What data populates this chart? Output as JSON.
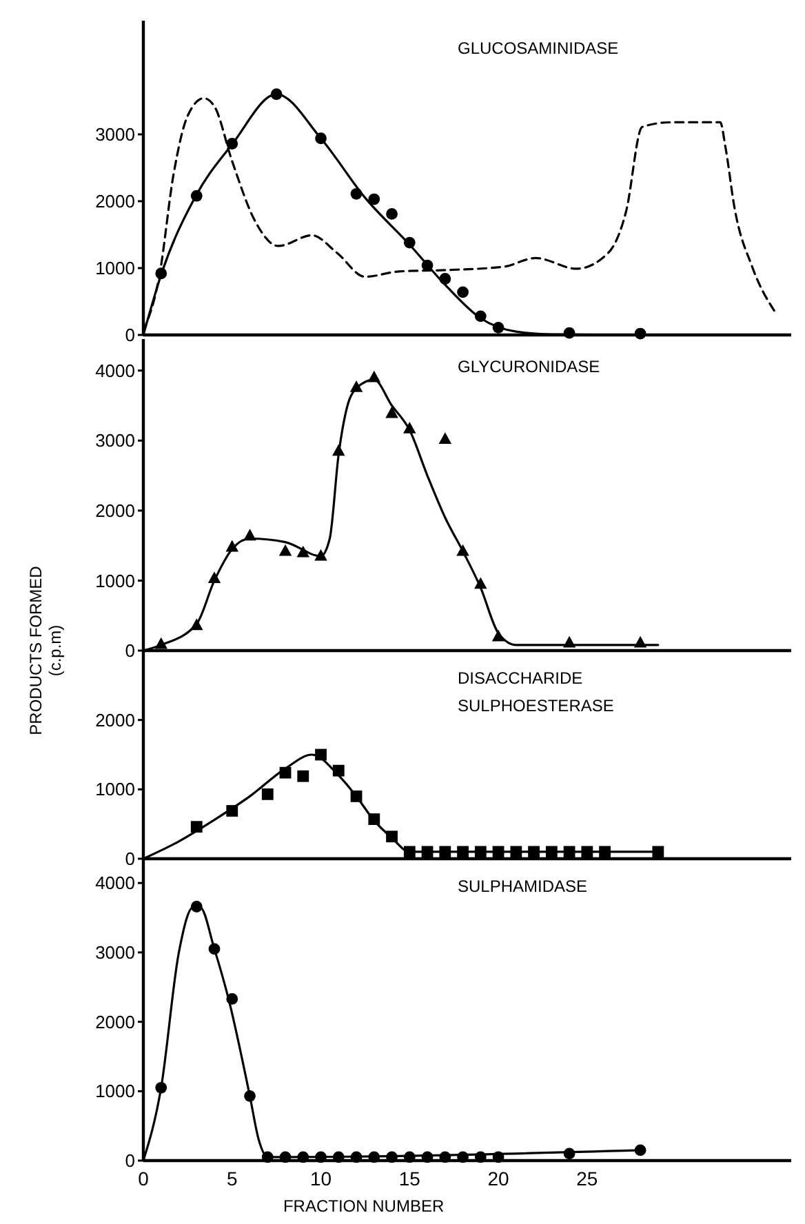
{
  "chart_data": [
    {
      "type": "line",
      "title": "GLUCOSAMINIDASE",
      "xlim": [
        0,
        36.5
      ],
      "ylim": [
        0,
        4700
      ],
      "yticks": [
        0,
        1000,
        2000,
        3000
      ],
      "tick_labels": "y",
      "grid": false,
      "series": [
        {
          "type": "scatter",
          "marker": "circle",
          "color": "#000000",
          "x": [
            1,
            3,
            5,
            7.5,
            10,
            12,
            13,
            14,
            15,
            16,
            17,
            18,
            19,
            20,
            24,
            28
          ],
          "values": [
            920,
            2080,
            2860,
            3600,
            2940,
            2110,
            2030,
            1810,
            1380,
            1040,
            840,
            640,
            280,
            110,
            30,
            20
          ]
        },
        {
          "marker": "none",
          "line_style": "solid",
          "color": "#000000",
          "x": [
            0,
            1,
            3,
            5,
            7.5,
            10,
            12.5,
            15,
            17,
            19,
            21,
            23,
            28
          ],
          "values": [
            0,
            900,
            2100,
            2850,
            3600,
            2940,
            2050,
            1350,
            750,
            250,
            50,
            10,
            0
          ]
        },
        {
          "marker": "none",
          "line_style": "dashed",
          "color": "#000000",
          "x": [
            0,
            0.9,
            1.7,
            2.5,
            3.4,
            4,
            5,
            6.3,
            7.6,
            9.5,
            10.9,
            12.5,
            14.4,
            17,
            20.3,
            22.1,
            24.4,
            26.2,
            27.2,
            28.1,
            29.7,
            32.5,
            32.8,
            33.3,
            34.3,
            35.7
          ],
          "values": [
            60,
            880,
            2400,
            3280,
            3540,
            3420,
            2600,
            1700,
            1330,
            1490,
            1230,
            870,
            950,
            970,
            1020,
            1150,
            990,
            1230,
            1850,
            3110,
            3180,
            3180,
            2800,
            1910,
            1020,
            300
          ]
        }
      ]
    },
    {
      "type": "line",
      "title": "GLYCURONIDASE",
      "ylabel": "PRODUCTS  FORMED\n(c.p.m)",
      "xlim": [
        0,
        36.5
      ],
      "ylim": [
        0,
        4450
      ],
      "yticks": [
        0,
        1000,
        2000,
        3000,
        4000
      ],
      "tick_labels": "y",
      "grid": false,
      "series": [
        {
          "type": "scatter",
          "marker": "triangle",
          "color": "#000000",
          "x": [
            1,
            3,
            4,
            5,
            6,
            8,
            9,
            10,
            11,
            12,
            13,
            14,
            15,
            17,
            18,
            19,
            20,
            24,
            28
          ],
          "values": [
            90,
            360,
            1030,
            1480,
            1640,
            1420,
            1400,
            1350,
            2850,
            3760,
            3900,
            3390,
            3170,
            3020,
            1420,
            950,
            200,
            110,
            110
          ]
        },
        {
          "marker": "none",
          "line_style": "solid",
          "color": "#000000",
          "x": [
            0,
            1,
            3,
            4,
            5,
            6,
            8,
            10,
            10.5,
            11,
            11.5,
            12,
            13,
            14,
            15,
            16,
            17,
            18,
            19,
            20,
            21,
            29
          ],
          "values": [
            0,
            80,
            380,
            1000,
            1450,
            1600,
            1550,
            1350,
            1600,
            2800,
            3500,
            3750,
            3870,
            3500,
            3150,
            2500,
            1900,
            1420,
            900,
            250,
            80,
            80
          ]
        }
      ]
    },
    {
      "type": "line",
      "title": "DISACCHARIDE\nSULPHOESTERASE",
      "xlim": [
        0,
        36.5
      ],
      "ylim": [
        0,
        3000
      ],
      "yticks": [
        0,
        1000,
        2000
      ],
      "tick_labels": "y",
      "grid": false,
      "series": [
        {
          "type": "scatter",
          "marker": "square",
          "color": "#000000",
          "x": [
            3,
            5,
            7,
            8,
            9,
            10,
            11,
            12,
            13,
            14,
            15,
            16,
            17,
            18,
            19,
            20,
            21,
            22,
            23,
            24,
            25,
            26,
            29
          ],
          "values": [
            460,
            690,
            930,
            1240,
            1190,
            1500,
            1270,
            900,
            570,
            320,
            100,
            100,
            100,
            100,
            100,
            100,
            100,
            100,
            100,
            100,
            100,
            100,
            100
          ]
        },
        {
          "marker": "none",
          "line_style": "solid",
          "color": "#000000",
          "x": [
            0,
            2,
            4,
            6,
            8,
            9.5,
            11,
            12,
            13,
            14,
            15,
            29
          ],
          "values": [
            0,
            250,
            560,
            900,
            1300,
            1500,
            1200,
            900,
            550,
            300,
            100,
            100
          ]
        }
      ]
    },
    {
      "type": "line",
      "title": "SULPHAMIDASE",
      "xlabel": "FRACTION  NUMBER",
      "xlim": [
        0,
        36.5
      ],
      "xticks": [
        0,
        5,
        10,
        15,
        20,
        25
      ],
      "ylim": [
        0,
        4350
      ],
      "yticks": [
        0,
        1000,
        2000,
        3000,
        4000
      ],
      "grid": false,
      "series": [
        {
          "type": "scatter",
          "marker": "circle",
          "color": "#000000",
          "x": [
            1,
            3,
            4,
            5,
            6,
            7,
            8,
            9,
            10,
            11,
            12,
            13,
            14,
            15,
            16,
            17,
            18,
            19,
            20,
            24,
            28
          ],
          "values": [
            1050,
            3660,
            3050,
            2330,
            930,
            50,
            50,
            50,
            50,
            50,
            50,
            50,
            50,
            50,
            50,
            50,
            50,
            50,
            50,
            100,
            150
          ]
        },
        {
          "marker": "none",
          "line_style": "solid",
          "color": "#000000",
          "x": [
            0,
            1,
            2,
            2.8,
            3.2,
            4,
            4.8,
            6,
            6.5,
            7,
            28
          ],
          "values": [
            0,
            1050,
            3000,
            3650,
            3650,
            3050,
            2330,
            930,
            300,
            50,
            150
          ]
        }
      ]
    }
  ]
}
